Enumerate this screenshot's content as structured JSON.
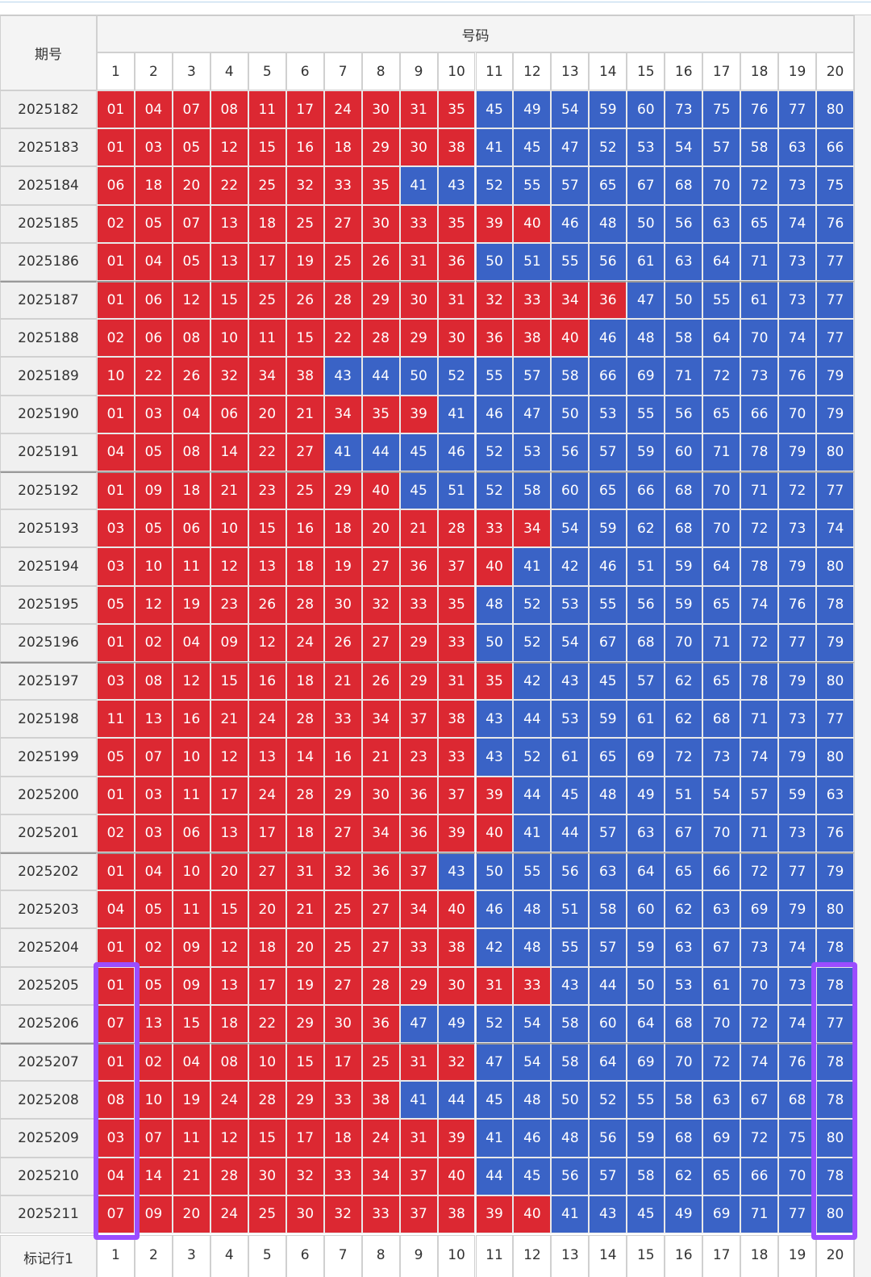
{
  "header": {
    "period": "期号",
    "numbers": "号码",
    "columns": [
      1,
      2,
      3,
      4,
      5,
      6,
      7,
      8,
      9,
      10,
      11,
      12,
      13,
      14,
      15,
      16,
      17,
      18,
      19,
      20
    ]
  },
  "rows": [
    {
      "period": "2025182",
      "red": [
        "01",
        "04",
        "07",
        "08",
        "11",
        "17",
        "24",
        "30",
        "31",
        "35"
      ],
      "blue": [
        "45",
        "49",
        "54",
        "59",
        "60",
        "73",
        "75",
        "76",
        "77",
        "80"
      ]
    },
    {
      "period": "2025183",
      "red": [
        "01",
        "03",
        "05",
        "12",
        "15",
        "16",
        "18",
        "29",
        "30",
        "38"
      ],
      "blue": [
        "41",
        "45",
        "47",
        "52",
        "53",
        "54",
        "57",
        "58",
        "63",
        "66"
      ]
    },
    {
      "period": "2025184",
      "red": [
        "06",
        "18",
        "20",
        "22",
        "25",
        "32",
        "33",
        "35"
      ],
      "blue": [
        "41",
        "43",
        "52",
        "55",
        "57",
        "65",
        "67",
        "68",
        "70",
        "72",
        "73",
        "75"
      ]
    },
    {
      "period": "2025185",
      "red": [
        "02",
        "05",
        "07",
        "13",
        "18",
        "25",
        "27",
        "30",
        "33",
        "35",
        "39",
        "40"
      ],
      "blue": [
        "46",
        "48",
        "50",
        "56",
        "63",
        "65",
        "74",
        "76"
      ]
    },
    {
      "period": "2025186",
      "red": [
        "01",
        "04",
        "05",
        "13",
        "17",
        "19",
        "25",
        "26",
        "31",
        "36"
      ],
      "blue": [
        "50",
        "51",
        "55",
        "56",
        "61",
        "63",
        "64",
        "71",
        "73",
        "77"
      ]
    },
    {
      "period": "2025187",
      "red": [
        "01",
        "06",
        "12",
        "15",
        "25",
        "26",
        "28",
        "29",
        "30",
        "31",
        "32",
        "33",
        "34",
        "36"
      ],
      "blue": [
        "47",
        "50",
        "55",
        "61",
        "73",
        "77"
      ]
    },
    {
      "period": "2025188",
      "red": [
        "02",
        "06",
        "08",
        "10",
        "11",
        "15",
        "22",
        "28",
        "29",
        "30",
        "36",
        "38",
        "40"
      ],
      "blue": [
        "46",
        "48",
        "58",
        "64",
        "70",
        "74",
        "77"
      ]
    },
    {
      "period": "2025189",
      "red": [
        "10",
        "22",
        "26",
        "32",
        "34",
        "38"
      ],
      "blue": [
        "43",
        "44",
        "50",
        "52",
        "55",
        "57",
        "58",
        "66",
        "69",
        "71",
        "72",
        "73",
        "76",
        "79"
      ]
    },
    {
      "period": "2025190",
      "red": [
        "01",
        "03",
        "04",
        "06",
        "20",
        "21",
        "34",
        "35",
        "39"
      ],
      "blue": [
        "41",
        "46",
        "47",
        "50",
        "53",
        "55",
        "56",
        "65",
        "66",
        "70",
        "79"
      ]
    },
    {
      "period": "2025191",
      "red": [
        "04",
        "05",
        "08",
        "14",
        "22",
        "27"
      ],
      "blue": [
        "41",
        "44",
        "45",
        "46",
        "52",
        "53",
        "56",
        "57",
        "59",
        "60",
        "71",
        "78",
        "79",
        "80"
      ]
    },
    {
      "period": "2025192",
      "red": [
        "01",
        "09",
        "18",
        "21",
        "23",
        "25",
        "29",
        "40"
      ],
      "blue": [
        "45",
        "51",
        "52",
        "58",
        "60",
        "65",
        "66",
        "68",
        "70",
        "71",
        "72",
        "77"
      ]
    },
    {
      "period": "2025193",
      "red": [
        "03",
        "05",
        "06",
        "10",
        "15",
        "16",
        "18",
        "20",
        "21",
        "28",
        "33",
        "34"
      ],
      "blue": [
        "54",
        "59",
        "62",
        "68",
        "70",
        "72",
        "73",
        "74"
      ]
    },
    {
      "period": "2025194",
      "red": [
        "03",
        "10",
        "11",
        "12",
        "13",
        "18",
        "19",
        "27",
        "36",
        "37",
        "40"
      ],
      "blue": [
        "41",
        "42",
        "46",
        "51",
        "59",
        "64",
        "78",
        "79",
        "80"
      ]
    },
    {
      "period": "2025195",
      "red": [
        "05",
        "12",
        "19",
        "23",
        "26",
        "28",
        "30",
        "32",
        "33",
        "35"
      ],
      "blue": [
        "48",
        "52",
        "53",
        "55",
        "56",
        "59",
        "65",
        "74",
        "76",
        "78"
      ]
    },
    {
      "period": "2025196",
      "red": [
        "01",
        "02",
        "04",
        "09",
        "12",
        "24",
        "26",
        "27",
        "29",
        "33"
      ],
      "blue": [
        "50",
        "52",
        "54",
        "67",
        "68",
        "70",
        "71",
        "72",
        "77",
        "79"
      ]
    },
    {
      "period": "2025197",
      "red": [
        "03",
        "08",
        "12",
        "15",
        "16",
        "18",
        "21",
        "26",
        "29",
        "31",
        "35"
      ],
      "blue": [
        "42",
        "43",
        "45",
        "57",
        "62",
        "65",
        "78",
        "79",
        "80"
      ]
    },
    {
      "period": "2025198",
      "red": [
        "11",
        "13",
        "16",
        "21",
        "24",
        "28",
        "33",
        "34",
        "37",
        "38"
      ],
      "blue": [
        "43",
        "44",
        "53",
        "59",
        "61",
        "62",
        "68",
        "71",
        "73",
        "77"
      ]
    },
    {
      "period": "2025199",
      "red": [
        "05",
        "07",
        "10",
        "12",
        "13",
        "14",
        "16",
        "21",
        "23",
        "33"
      ],
      "blue": [
        "43",
        "52",
        "61",
        "65",
        "69",
        "72",
        "73",
        "74",
        "79",
        "80"
      ]
    },
    {
      "period": "2025200",
      "red": [
        "01",
        "03",
        "11",
        "17",
        "24",
        "28",
        "29",
        "30",
        "36",
        "37",
        "39"
      ],
      "blue": [
        "44",
        "45",
        "48",
        "49",
        "51",
        "54",
        "57",
        "59",
        "63"
      ]
    },
    {
      "period": "2025201",
      "red": [
        "02",
        "03",
        "06",
        "13",
        "17",
        "18",
        "27",
        "34",
        "36",
        "39",
        "40"
      ],
      "blue": [
        "41",
        "44",
        "57",
        "63",
        "67",
        "70",
        "71",
        "73",
        "76"
      ]
    },
    {
      "period": "2025202",
      "red": [
        "01",
        "04",
        "10",
        "20",
        "27",
        "31",
        "32",
        "36",
        "37"
      ],
      "blue": [
        "43",
        "50",
        "55",
        "56",
        "63",
        "64",
        "65",
        "66",
        "72",
        "77",
        "79"
      ]
    },
    {
      "period": "2025203",
      "red": [
        "04",
        "05",
        "11",
        "15",
        "20",
        "21",
        "25",
        "27",
        "34",
        "40"
      ],
      "blue": [
        "46",
        "48",
        "51",
        "58",
        "60",
        "62",
        "63",
        "69",
        "79",
        "80"
      ]
    },
    {
      "period": "2025204",
      "red": [
        "01",
        "02",
        "09",
        "12",
        "18",
        "20",
        "25",
        "27",
        "33",
        "38"
      ],
      "blue": [
        "42",
        "48",
        "55",
        "57",
        "59",
        "63",
        "67",
        "73",
        "74",
        "78"
      ]
    },
    {
      "period": "2025205",
      "red": [
        "01",
        "05",
        "09",
        "13",
        "17",
        "19",
        "27",
        "28",
        "29",
        "30",
        "31",
        "33"
      ],
      "blue": [
        "43",
        "44",
        "50",
        "53",
        "61",
        "70",
        "73",
        "78"
      ]
    },
    {
      "period": "2025206",
      "red": [
        "07",
        "13",
        "15",
        "18",
        "22",
        "29",
        "30",
        "36"
      ],
      "blue": [
        "47",
        "49",
        "52",
        "54",
        "58",
        "60",
        "64",
        "68",
        "70",
        "72",
        "74",
        "77"
      ]
    },
    {
      "period": "2025207",
      "red": [
        "01",
        "02",
        "04",
        "08",
        "10",
        "15",
        "17",
        "25",
        "31",
        "32"
      ],
      "blue": [
        "47",
        "54",
        "58",
        "64",
        "69",
        "70",
        "72",
        "74",
        "76",
        "78"
      ]
    },
    {
      "period": "2025208",
      "red": [
        "08",
        "10",
        "19",
        "24",
        "28",
        "29",
        "33",
        "38"
      ],
      "blue": [
        "41",
        "44",
        "45",
        "48",
        "50",
        "52",
        "55",
        "58",
        "63",
        "67",
        "68",
        "78"
      ]
    },
    {
      "period": "2025209",
      "red": [
        "03",
        "07",
        "11",
        "12",
        "15",
        "17",
        "18",
        "24",
        "31",
        "39"
      ],
      "blue": [
        "41",
        "46",
        "48",
        "56",
        "59",
        "68",
        "69",
        "72",
        "75",
        "80"
      ]
    },
    {
      "period": "2025210",
      "red": [
        "04",
        "14",
        "21",
        "28",
        "30",
        "32",
        "33",
        "34",
        "37",
        "40"
      ],
      "blue": [
        "44",
        "45",
        "56",
        "57",
        "58",
        "62",
        "65",
        "66",
        "70",
        "78"
      ]
    },
    {
      "period": "2025211",
      "red": [
        "07",
        "09",
        "20",
        "24",
        "25",
        "30",
        "32",
        "33",
        "37",
        "38",
        "39",
        "40"
      ],
      "blue": [
        "41",
        "43",
        "45",
        "49",
        "69",
        "71",
        "77",
        "80"
      ]
    }
  ],
  "footer": {
    "label": "标记行1",
    "columns": [
      1,
      2,
      3,
      4,
      5,
      6,
      7,
      8,
      9,
      10,
      11,
      12,
      13,
      14,
      15,
      16,
      17,
      18,
      19,
      20
    ]
  },
  "colors": {
    "red": "#dc2832",
    "blue": "#3a63c6",
    "highlight": "#9b4dff"
  }
}
